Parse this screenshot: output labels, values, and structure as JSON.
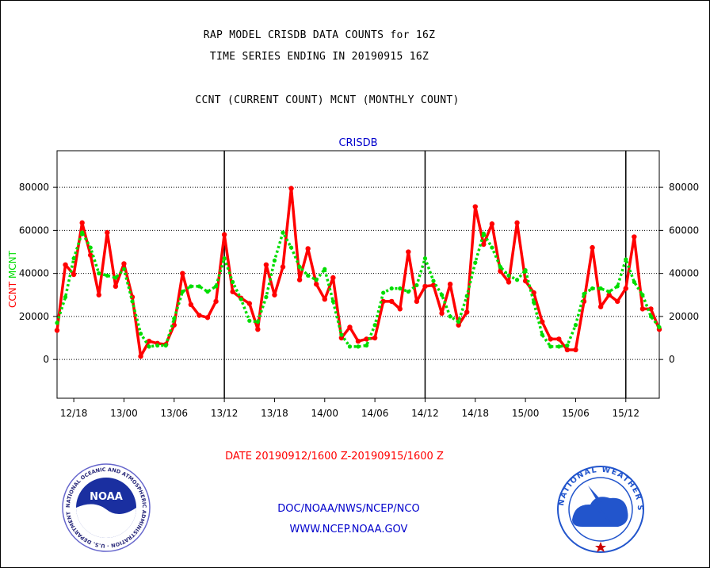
{
  "titles": {
    "line1": "RAP MODEL CRISDB DATA COUNTS for 16Z",
    "line2": "TIME SERIES ENDING IN 20190915 16Z",
    "line3": "CCNT (CURRENT COUNT) MCNT (MONTHLY COUNT)"
  },
  "footer": {
    "org": "DOC/NOAA/NWS/NCEP/NCO",
    "url": "WWW.NCEP.NOAA.GOV"
  },
  "logos": {
    "left": {
      "name": "NOAA",
      "ring_text": "NATIONAL OCEANIC AND ATMOSPHERIC ADMINISTRATION · U.S. DEPARTMENT OF COMMERCE",
      "icon": "noaa-seal"
    },
    "right": {
      "ring_text": "NATIONAL WEATHER SERVICE",
      "icon": "nws-seal"
    }
  },
  "colors": {
    "ccnt": "#ff0000",
    "mcnt": "#00dd00",
    "header": "#0000cc"
  },
  "chart_data": {
    "type": "line",
    "title": "CRISDB",
    "xlabel": "DATE 20190912/1600 Z-20190915/1600 Z",
    "ylabel_left": [
      "CCNT",
      "MCNT"
    ],
    "yticks": [
      0,
      20000,
      40000,
      60000,
      80000
    ],
    "ylim": [
      -18000,
      97000
    ],
    "xticklabels": [
      "12/18",
      "13/00",
      "13/06",
      "13/12",
      "13/18",
      "14/00",
      "14/06",
      "14/12",
      "14/18",
      "15/00",
      "15/06",
      "15/12"
    ],
    "x_hour_range": [
      16,
      88
    ],
    "xtick_hours": [
      18,
      24,
      30,
      36,
      42,
      48,
      54,
      60,
      66,
      72,
      78,
      84
    ],
    "day_separator_hours": [
      36,
      60,
      84
    ],
    "grid": "horizontal dotted",
    "series": [
      {
        "name": "CCNT",
        "color": "#ff0000",
        "style": "solid",
        "values": [
          13500,
          44000,
          39500,
          63500,
          48500,
          30000,
          59000,
          34000,
          44500,
          29000,
          1500,
          8500,
          7500,
          7000,
          16000,
          40000,
          25500,
          20500,
          19500,
          27000,
          58000,
          31500,
          28500,
          26000,
          14000,
          44000,
          30000,
          43000,
          79500,
          37000,
          51500,
          35000,
          28000,
          38000,
          10000,
          15000,
          8500,
          9500,
          10000,
          27000,
          27000,
          23500,
          50000,
          27000,
          34000,
          34500,
          21500,
          35000,
          16000,
          22000,
          71000,
          53500,
          63000,
          41000,
          36000,
          63500,
          36500,
          31000,
          17500,
          9500,
          9500,
          4500,
          4500,
          27000,
          52000,
          24500,
          30000,
          27000,
          33000,
          57000,
          23500,
          23500,
          14000
        ]
      },
      {
        "name": "MCNT",
        "color": "#00dd00",
        "style": "dotted",
        "values": [
          17000,
          29000,
          47000,
          59000,
          52000,
          40000,
          39000,
          38000,
          42000,
          27000,
          12000,
          6000,
          6500,
          6500,
          19000,
          31500,
          34000,
          34000,
          31500,
          34000,
          47000,
          36000,
          28000,
          18000,
          17500,
          29000,
          46000,
          59000,
          52000,
          43000,
          39000,
          37000,
          42000,
          27000,
          11500,
          6000,
          6000,
          6500,
          16000,
          31000,
          33000,
          33000,
          31500,
          34500,
          47000,
          36500,
          30000,
          20000,
          17500,
          29500,
          45000,
          58500,
          52000,
          43000,
          39000,
          37000,
          41500,
          26500,
          11500,
          6000,
          6000,
          6500,
          16000,
          30500,
          33000,
          33000,
          31500,
          34000,
          46500,
          36000,
          30000,
          20000,
          15000
        ]
      }
    ]
  }
}
